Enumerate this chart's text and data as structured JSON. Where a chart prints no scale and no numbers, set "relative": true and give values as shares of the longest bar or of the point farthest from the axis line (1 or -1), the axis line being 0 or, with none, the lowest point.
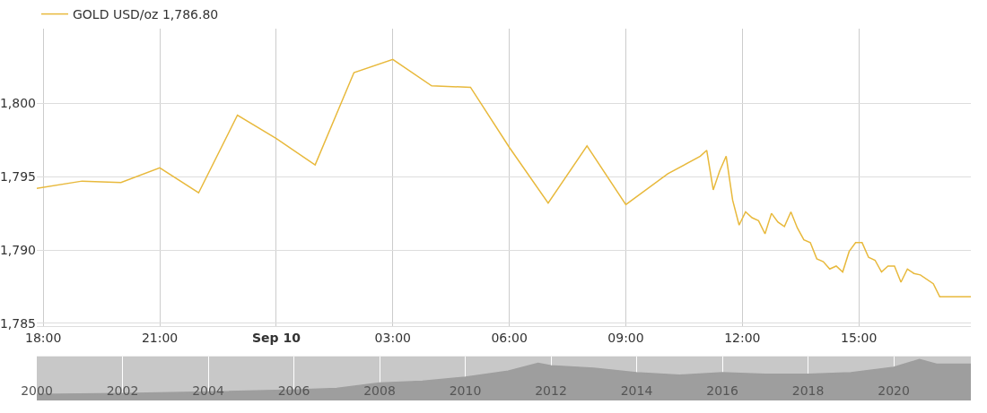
{
  "chart_data": [
    {
      "type": "line",
      "legend": "top left",
      "grid": true,
      "marker": "none",
      "line_style": "solid",
      "xlim": [
        "--09-09T17:50",
        "--09-10T17:53"
      ],
      "ylim": [
        1784.8,
        1805.1
      ],
      "xticks": [
        {
          "value": "--09-09T18:00",
          "label": "18:00"
        },
        {
          "value": "--09-09T21:00",
          "label": "21:00"
        },
        {
          "value": "--09-10T00:00",
          "label": "Sep 10"
        },
        {
          "value": "--09-10T03:00",
          "label": "03:00"
        },
        {
          "value": "--09-10T06:00",
          "label": "06:00"
        },
        {
          "value": "--09-10T09:00",
          "label": "09:00"
        },
        {
          "value": "--09-10T12:00",
          "label": "12:00"
        },
        {
          "value": "--09-10T15:00",
          "label": "15:00"
        }
      ],
      "yticks": [
        {
          "value": 1785,
          "label": "1,785"
        },
        {
          "value": 1790,
          "label": "1,790"
        },
        {
          "value": 1795,
          "label": "1,795"
        },
        {
          "value": 1800,
          "label": "1,800"
        }
      ],
      "series": [
        {
          "name": "GOLD USD/oz 1,786.80",
          "color": "#e8b93c",
          "x": [
            "--09-09T17:50",
            "--09-09T19:00",
            "--09-09T20:00",
            "--09-09T21:00",
            "--09-09T22:00",
            "--09-09T23:00",
            "--09-10T00:00",
            "--09-10T01:00",
            "--09-10T02:00",
            "--09-10T03:00",
            "--09-10T04:00",
            "--09-10T05:00",
            "--09-10T06:00",
            "--09-10T07:00",
            "--09-10T08:00",
            "--09-10T09:00",
            "--09-10T10:05",
            "--09-10T10:55",
            "--09-10T11:05",
            "--09-10T11:15",
            "--09-10T11:25",
            "--09-10T11:35",
            "--09-10T11:45",
            "--09-10T11:55",
            "--09-10T12:05",
            "--09-10T12:15",
            "--09-10T12:25",
            "--09-10T12:35",
            "--09-10T12:45",
            "--09-10T12:55",
            "--09-10T13:05",
            "--09-10T13:15",
            "--09-10T13:25",
            "--09-10T13:35",
            "--09-10T13:45",
            "--09-10T13:55",
            "--09-10T14:05",
            "--09-10T14:15",
            "--09-10T14:25",
            "--09-10T14:35",
            "--09-10T14:45",
            "--09-10T14:55",
            "--09-10T15:05",
            "--09-10T15:15",
            "--09-10T15:25",
            "--09-10T15:35",
            "--09-10T15:45",
            "--09-10T15:55",
            "--09-10T16:05",
            "--09-10T16:15",
            "--09-10T16:25",
            "--09-10T16:35",
            "--09-10T16:55",
            "--09-10T17:05",
            "--09-10T17:53"
          ],
          "values": [
            1794.2,
            1794.7,
            1794.6,
            1795.6,
            1793.9,
            1799.2,
            1797.6,
            1795.8,
            1802.1,
            1803.0,
            1801.2,
            1801.1,
            1797.0,
            1793.2,
            1797.1,
            1793.1,
            1795.2,
            1796.4,
            1796.8,
            1794.1,
            1795.4,
            1796.4,
            1793.4,
            1791.7,
            1792.6,
            1792.2,
            1792.0,
            1791.1,
            1792.5,
            1791.9,
            1791.6,
            1792.6,
            1791.5,
            1790.7,
            1790.5,
            1789.4,
            1789.2,
            1788.7,
            1788.9,
            1788.5,
            1789.9,
            1790.5,
            1790.5,
            1789.5,
            1789.3,
            1788.5,
            1788.9,
            1788.9,
            1787.8,
            1788.7,
            1788.4,
            1788.3,
            1787.7,
            1786.8,
            1786.8
          ]
        }
      ]
    },
    {
      "type": "area",
      "relative": true,
      "grid": "x",
      "xlim": [
        2000,
        2021.8
      ],
      "xticks": [
        2000,
        2002,
        2004,
        2006,
        2008,
        2010,
        2012,
        2014,
        2016,
        2018,
        2020
      ],
      "series": [
        {
          "color": "#9e9e9e",
          "x": [
            2000,
            2002,
            2004,
            2006,
            2007,
            2008,
            2009,
            2010,
            2011,
            2011.7,
            2012,
            2013,
            2014,
            2015,
            2016,
            2017,
            2018,
            2019,
            2020,
            2020.6,
            2021,
            2021.8
          ],
          "values": [
            0.15,
            0.17,
            0.21,
            0.26,
            0.3,
            0.43,
            0.47,
            0.57,
            0.72,
            0.91,
            0.85,
            0.79,
            0.68,
            0.62,
            0.68,
            0.64,
            0.64,
            0.68,
            0.81,
            1,
            0.89,
            0.89
          ]
        }
      ]
    }
  ]
}
